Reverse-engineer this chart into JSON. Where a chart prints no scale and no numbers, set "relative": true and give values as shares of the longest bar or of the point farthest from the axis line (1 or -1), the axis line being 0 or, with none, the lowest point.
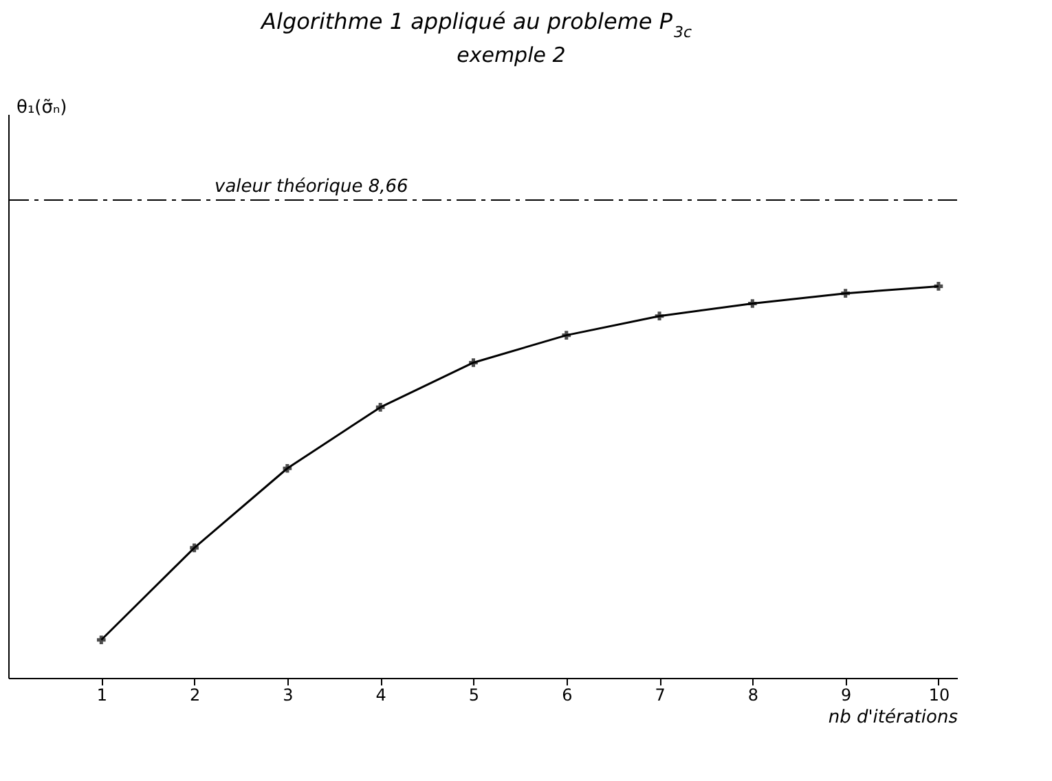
{
  "chart_data": {
    "type": "line",
    "title": "Algorithme 1  appliqué au probleme P$_{3c}$",
    "subtitle": "exemple 2",
    "xlabel": "nb d'itérations",
    "annotations": [
      "θ₁(σ̃ₙ)"
    ],
    "relative": true,
    "x": [
      1,
      2,
      3,
      4,
      5,
      6,
      7,
      8,
      9,
      10
    ],
    "series": [
      {
        "color": "#000000",
        "values": [
          0.097,
          0.332,
          0.535,
          0.691,
          0.805,
          0.875,
          0.924,
          0.956,
          0.982,
          1.0
        ]
      }
    ],
    "xlim": [
      0,
      10.2
    ],
    "xticks": [
      1,
      2,
      3,
      4,
      5,
      6,
      7,
      8,
      9,
      10
    ],
    "ref_lines": [
      {
        "axis": "y",
        "value": 1.22,
        "label": "valeur théorique 8,66",
        "line_style": "dashed",
        "color": "#000000"
      }
    ],
    "marker": "cross",
    "line_style": "solid",
    "grid": false
  }
}
